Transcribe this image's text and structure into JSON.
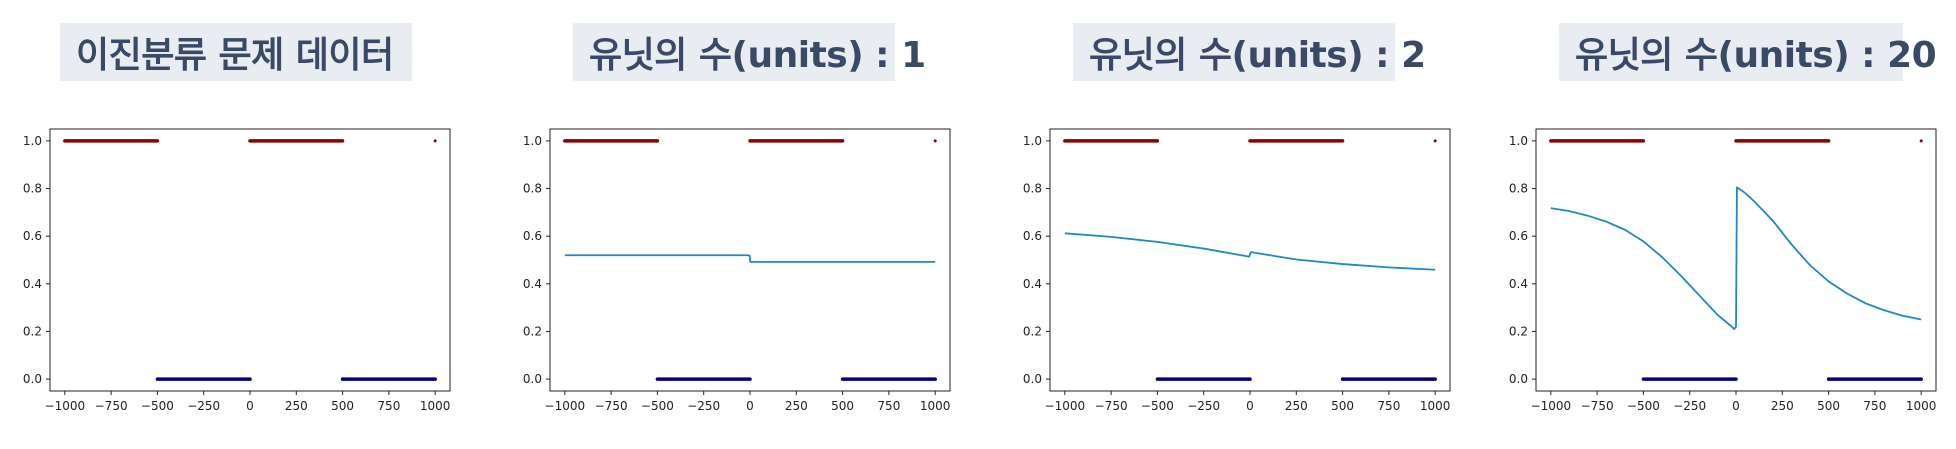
{
  "chart_data": [
    {
      "type": "scatter",
      "title": "이진분류 문제 데이터",
      "xlim": [
        -1080,
        1080
      ],
      "ylim": [
        -0.05,
        1.05
      ],
      "xticks": [
        -1000,
        -750,
        -500,
        -250,
        0,
        250,
        500,
        750,
        1000
      ],
      "yticks": [
        0.0,
        0.2,
        0.4,
        0.6,
        0.8,
        1.0
      ],
      "xtick_labels": [
        "−1000",
        "−750",
        "−500",
        "−250",
        "0",
        "250",
        "500",
        "750",
        "1000"
      ],
      "ytick_labels": [
        "0.0",
        "0.2",
        "0.4",
        "0.6",
        "0.8",
        "1.0"
      ],
      "data": {
        "class1_ranges": [
          [
            -1000,
            -500
          ],
          [
            0,
            500
          ]
        ],
        "class0_ranges": [
          [
            -500,
            0
          ],
          [
            500,
            1000
          ]
        ],
        "extra_point": [
          1000,
          1
        ]
      },
      "colors": {
        "class1": "#8b0000",
        "class0": "#000080",
        "line": "#1f8ac0"
      },
      "curve": []
    },
    {
      "type": "scatter",
      "title": "유닛의 수(units) : 1",
      "xlim": [
        -1080,
        1080
      ],
      "ylim": [
        -0.05,
        1.05
      ],
      "xticks": [
        -1000,
        -750,
        -500,
        -250,
        0,
        250,
        500,
        750,
        1000
      ],
      "yticks": [
        0.0,
        0.2,
        0.4,
        0.6,
        0.8,
        1.0
      ],
      "xtick_labels": [
        "−1000",
        "−750",
        "−500",
        "−250",
        "0",
        "250",
        "500",
        "750",
        "1000"
      ],
      "ytick_labels": [
        "0.0",
        "0.2",
        "0.4",
        "0.6",
        "0.8",
        "1.0"
      ],
      "data": {
        "class1_ranges": [
          [
            -1000,
            -500
          ],
          [
            0,
            500
          ]
        ],
        "class0_ranges": [
          [
            -500,
            0
          ],
          [
            500,
            1000
          ]
        ],
        "extra_point": [
          1000,
          1
        ]
      },
      "colors": {
        "class1": "#8b0000",
        "class0": "#000080",
        "line": "#1f8ac0"
      },
      "curve": [
        [
          -1000,
          0.52
        ],
        [
          -10,
          0.52
        ],
        [
          -2,
          0.518
        ],
        [
          0,
          0.505
        ],
        [
          2,
          0.492
        ],
        [
          10,
          0.492
        ],
        [
          1000,
          0.492
        ]
      ]
    },
    {
      "type": "scatter",
      "title": "유닛의 수(units) : 2",
      "xlim": [
        -1080,
        1080
      ],
      "ylim": [
        -0.05,
        1.05
      ],
      "xticks": [
        -1000,
        -750,
        -500,
        -250,
        0,
        250,
        500,
        750,
        1000
      ],
      "yticks": [
        0.0,
        0.2,
        0.4,
        0.6,
        0.8,
        1.0
      ],
      "xtick_labels": [
        "−1000",
        "−750",
        "−500",
        "−250",
        "0",
        "250",
        "500",
        "750",
        "1000"
      ],
      "ytick_labels": [
        "0.0",
        "0.2",
        "0.4",
        "0.6",
        "0.8",
        "1.0"
      ],
      "data": {
        "class1_ranges": [
          [
            -1000,
            -500
          ],
          [
            0,
            500
          ]
        ],
        "class0_ranges": [
          [
            -500,
            0
          ],
          [
            500,
            1000
          ]
        ],
        "extra_point": [
          1000,
          1
        ]
      },
      "colors": {
        "class1": "#8b0000",
        "class0": "#000080",
        "line": "#1f8ac0"
      },
      "curve": [
        [
          -1000,
          0.612
        ],
        [
          -750,
          0.597
        ],
        [
          -500,
          0.576
        ],
        [
          -250,
          0.548
        ],
        [
          -5,
          0.514
        ],
        [
          5,
          0.533
        ],
        [
          250,
          0.502
        ],
        [
          500,
          0.483
        ],
        [
          750,
          0.469
        ],
        [
          1000,
          0.459
        ]
      ]
    },
    {
      "type": "scatter",
      "title": "유닛의 수(units) : 20",
      "xlim": [
        -1080,
        1080
      ],
      "ylim": [
        -0.05,
        1.05
      ],
      "xticks": [
        -1000,
        -750,
        -500,
        -250,
        0,
        250,
        500,
        750,
        1000
      ],
      "yticks": [
        0.0,
        0.2,
        0.4,
        0.6,
        0.8,
        1.0
      ],
      "xtick_labels": [
        "−1000",
        "−750",
        "−500",
        "−250",
        "0",
        "250",
        "500",
        "750",
        "1000"
      ],
      "ytick_labels": [
        "0.0",
        "0.2",
        "0.4",
        "0.6",
        "0.8",
        "1.0"
      ],
      "data": {
        "class1_ranges": [
          [
            -1000,
            -500
          ],
          [
            0,
            500
          ]
        ],
        "class0_ranges": [
          [
            -500,
            0
          ],
          [
            500,
            1000
          ]
        ],
        "extra_point": [
          1000,
          1
        ]
      },
      "colors": {
        "class1": "#8b0000",
        "class0": "#000080",
        "line": "#1f8ac0"
      },
      "curve": [
        [
          -1000,
          0.718
        ],
        [
          -900,
          0.705
        ],
        [
          -800,
          0.686
        ],
        [
          -700,
          0.661
        ],
        [
          -600,
          0.627
        ],
        [
          -500,
          0.578
        ],
        [
          -400,
          0.513
        ],
        [
          -300,
          0.436
        ],
        [
          -200,
          0.353
        ],
        [
          -100,
          0.27
        ],
        [
          -30,
          0.225
        ],
        [
          -10,
          0.21
        ],
        [
          0,
          0.22
        ],
        [
          5,
          0.805
        ],
        [
          50,
          0.781
        ],
        [
          100,
          0.745
        ],
        [
          200,
          0.664
        ],
        [
          300,
          0.565
        ],
        [
          400,
          0.478
        ],
        [
          500,
          0.41
        ],
        [
          600,
          0.359
        ],
        [
          700,
          0.318
        ],
        [
          800,
          0.289
        ],
        [
          900,
          0.266
        ],
        [
          1000,
          0.25
        ]
      ]
    }
  ]
}
